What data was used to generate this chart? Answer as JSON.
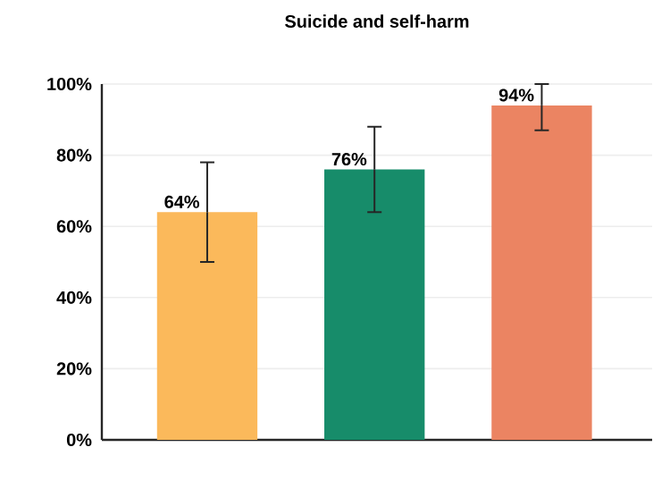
{
  "chart_data": {
    "type": "bar",
    "title": "Suicide and self-harm",
    "categories": [
      null,
      null,
      null
    ],
    "values": [
      64,
      76,
      94
    ],
    "colors": [
      "#fbb95b",
      "#178c6a",
      "#eb8462"
    ],
    "errors": [
      [
        50,
        78
      ],
      [
        64,
        88
      ],
      [
        87,
        100
      ]
    ],
    "value_labels": [
      "64%",
      "76%",
      "94%"
    ],
    "ylim": [
      0,
      100
    ],
    "yticks": [
      {
        "value": 0,
        "label": "0%"
      },
      {
        "value": 20,
        "label": "20%"
      },
      {
        "value": 40,
        "label": "40%"
      },
      {
        "value": 60,
        "label": "60%"
      },
      {
        "value": 80,
        "label": "80%"
      },
      {
        "value": 100,
        "label": "100%"
      }
    ],
    "grid": "y"
  }
}
